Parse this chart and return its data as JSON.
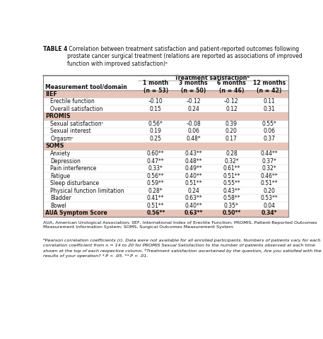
{
  "title_bold": "TABLE 4",
  "title_rest": " Correlation between treatment satisfaction and patient-reported outcomes following prostate cancer surgical treatment (relations are reported as associations of improved function with improved satisfaction)ᵃ",
  "col_header_group": "Treatment satisfactionᵇ",
  "col_headers": [
    "1 month\n(n = 53)",
    "3 months\n(n = 50)",
    "6 months\n(n = 46)",
    "12 months\n(n = 42)"
  ],
  "row_header": "Measurement tool/domain",
  "sections": [
    {
      "name": "IIEF",
      "rows": [
        {
          "label": "Erectile function",
          "values": [
            "–0.10",
            "–0.12",
            "–0.12",
            "0.11"
          ]
        },
        {
          "label": "Overall satisfaction",
          "values": [
            "0.15",
            "0.24",
            "0.12",
            "0.31"
          ]
        }
      ]
    },
    {
      "name": "PROMIS",
      "rows": [
        {
          "label": "Sexual satisfactionᶜ",
          "values": [
            "0.56*",
            "–0.08",
            "0.39",
            "0.55*"
          ]
        },
        {
          "label": "Sexual interest",
          "values": [
            "0.19",
            "0.06",
            "0.20",
            "0.06"
          ]
        },
        {
          "label": "Orgasmᶜ",
          "values": [
            "0.25",
            "0.48*",
            "0.17",
            "0.37"
          ]
        }
      ]
    },
    {
      "name": "SOMS",
      "rows": [
        {
          "label": "Anxiety",
          "values": [
            "0.60**",
            "0.43**",
            "0.28",
            "0.44**"
          ]
        },
        {
          "label": "Depression",
          "values": [
            "0.47**",
            "0.48**",
            "0.32*",
            "0.37*"
          ]
        },
        {
          "label": "Pain interference",
          "values": [
            "0.33*",
            "0.49**",
            "0.61**",
            "0.32*"
          ]
        },
        {
          "label": "Fatigue",
          "values": [
            "0.56**",
            "0.40**",
            "0.51**",
            "0.46**"
          ]
        },
        {
          "label": "Sleep disturbance",
          "values": [
            "0.59**",
            "0.51**",
            "0.55**",
            "0.51**"
          ]
        },
        {
          "label": "Physical function limitation",
          "values": [
            "0.28*",
            "0.24",
            "0.43**",
            "0.20"
          ]
        },
        {
          "label": "Bladder",
          "values": [
            "0.41**",
            "0.63**",
            "0.58**",
            "0.53**"
          ]
        },
        {
          "label": "Bowel",
          "values": [
            "0.51**",
            "0.40**",
            "0.35*",
            "0.04"
          ]
        }
      ]
    }
  ],
  "footer_row": {
    "label": "AUA Symptom Score",
    "values": [
      "0.56**",
      "0.63**",
      "0.50**",
      "0.34*"
    ]
  },
  "footnote1": "AUA, American Urological Association; IIEF, International Index of Erectile Function; PROMIS, Patient-Reported Outcomes\nMeasurement Information System; SOMS, Surgical Outcomes Measurement System",
  "footnote2": "ᵃPearson correlation coefficients (r). Data were not available for all enrolled participants. Numbers of patients vary for each correlation coefficient from n = 14 to 20 for PROMIS Sexual Satisfaction to the number of patients observed at each time shown at the top of each respective column. ᵇTreatment satisfaction ascertained by the question, Are you satisfied with the results of your operation? * P < .05. ** P < .01.",
  "bg_color": "#ffffff",
  "section_header_color": "#e8c4b8",
  "footer_row_color": "#e8c4b8",
  "title_fs": 5.5,
  "header_fs": 5.8,
  "data_fs": 5.5,
  "section_fs": 5.8,
  "footnote_fs": 4.6
}
